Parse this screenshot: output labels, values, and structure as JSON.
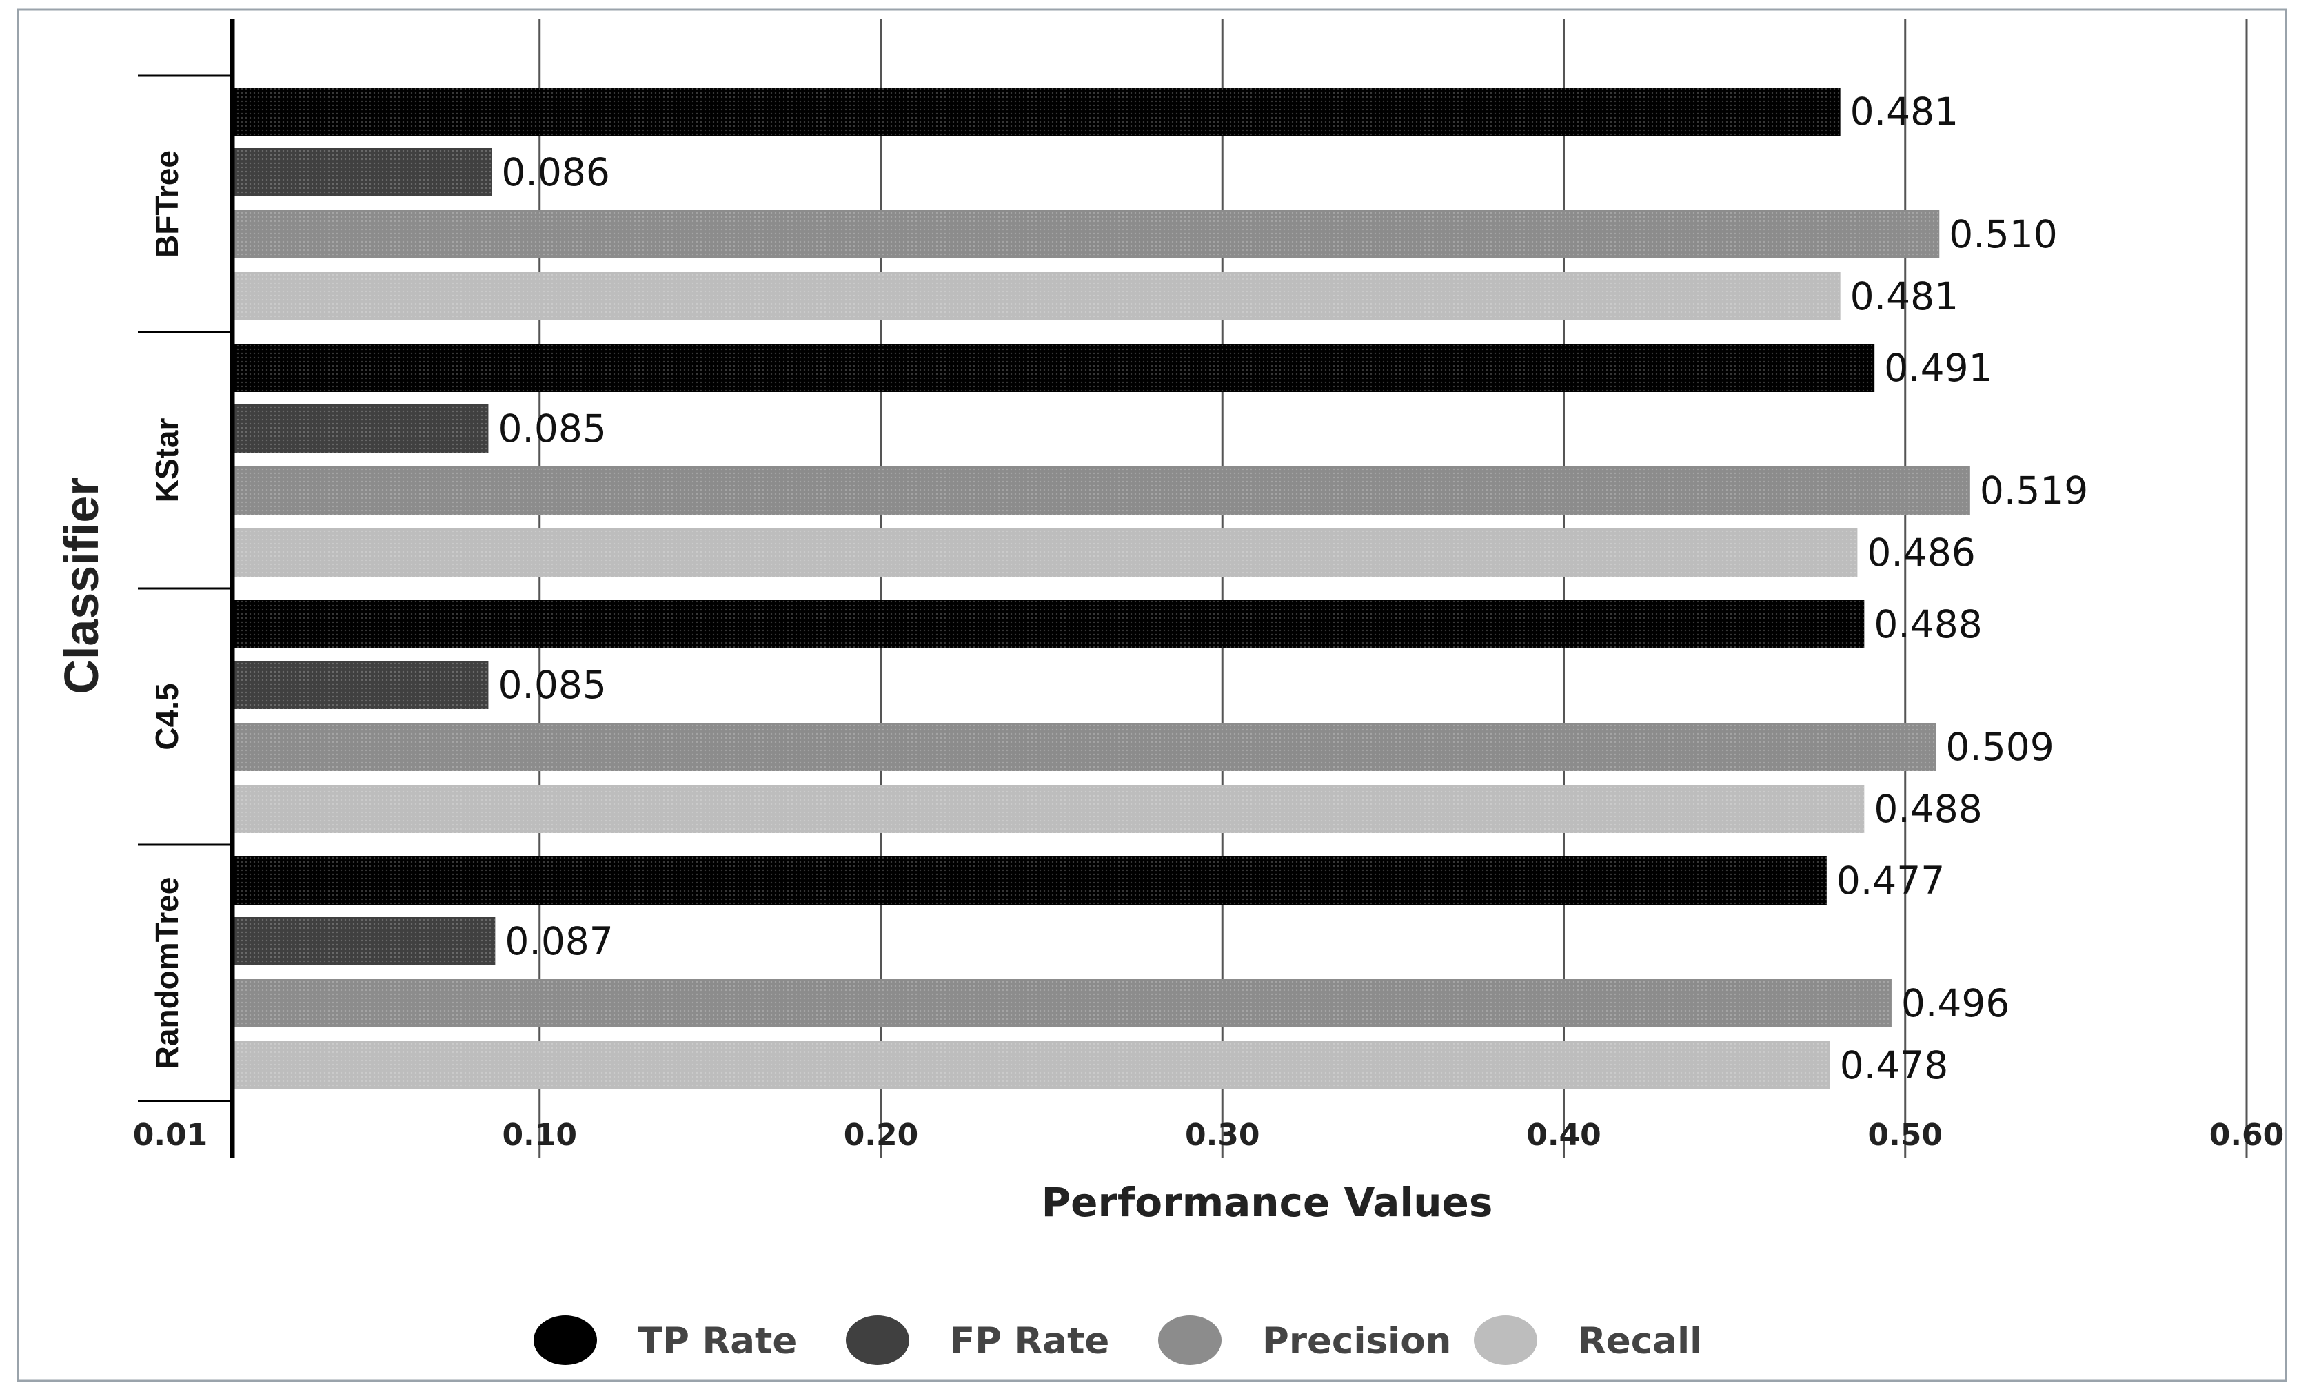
{
  "chart_data": {
    "type": "bar",
    "orientation": "horizontal",
    "title": "",
    "xlabel": "Performance Values",
    "ylabel": "Classifier",
    "categories": [
      "BFTree",
      "KStar",
      "C4.5",
      "RandomTree"
    ],
    "xlim": [
      0.01,
      0.6
    ],
    "xticks": [
      0.01,
      0.1,
      0.2,
      0.3,
      0.4,
      0.5,
      0.6
    ],
    "xtick_labels": [
      "0.01",
      "0.10",
      "0.20",
      "0.30",
      "0.40",
      "0.50",
      "0.60"
    ],
    "grid": "vertical",
    "legend_position": "bottom",
    "series": [
      {
        "name": "TP Rate",
        "color": "#000000",
        "values": [
          0.481,
          0.491,
          0.488,
          0.477
        ],
        "labels": [
          "0.481",
          "0.491",
          "0.488",
          "0.477"
        ]
      },
      {
        "name": "FP Rate",
        "color": "#404040",
        "values": [
          0.086,
          0.085,
          0.085,
          0.087
        ],
        "labels": [
          "0.086",
          "0.085",
          "0.085",
          "0.087"
        ]
      },
      {
        "name": "Precision",
        "color": "#8c8c8c",
        "values": [
          0.51,
          0.519,
          0.509,
          0.496
        ],
        "labels": [
          "0.510",
          "0.519",
          "0.509",
          "0.496"
        ]
      },
      {
        "name": "Recall",
        "color": "#bdbdbd",
        "values": [
          0.481,
          0.486,
          0.488,
          0.478
        ],
        "labels": [
          "0.481",
          "0.486",
          "0.488",
          "0.478"
        ]
      }
    ]
  }
}
